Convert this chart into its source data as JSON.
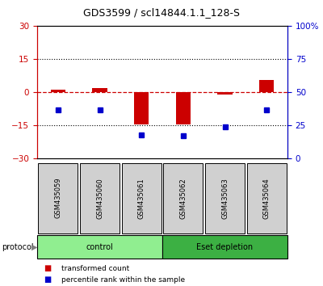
{
  "title": "GDS3599 / scl14844.1.1_128-S",
  "samples": [
    "GSM435059",
    "GSM435060",
    "GSM435061",
    "GSM435062",
    "GSM435063",
    "GSM435064"
  ],
  "red_values": [
    1.0,
    2.0,
    -14.5,
    -14.5,
    -1.0,
    5.5
  ],
  "blue_values": [
    37,
    37,
    18,
    17,
    24,
    37
  ],
  "left_ylim": [
    -30,
    30
  ],
  "right_ylim": [
    0,
    100
  ],
  "left_yticks": [
    -30,
    -15,
    0,
    15,
    30
  ],
  "right_yticks": [
    0,
    25,
    50,
    75,
    100
  ],
  "right_yticklabels": [
    "0",
    "25",
    "50",
    "75",
    "100%"
  ],
  "groups": [
    {
      "label": "control",
      "n": 3,
      "color": "#90EE90"
    },
    {
      "label": "Eset depletion",
      "n": 3,
      "color": "#3CB043"
    }
  ],
  "protocol_label": "protocol",
  "legend_red": "transformed count",
  "legend_blue": "percentile rank within the sample",
  "red_color": "#CC0000",
  "blue_color": "#0000CC",
  "bar_width": 0.35,
  "background_color": "#ffffff"
}
